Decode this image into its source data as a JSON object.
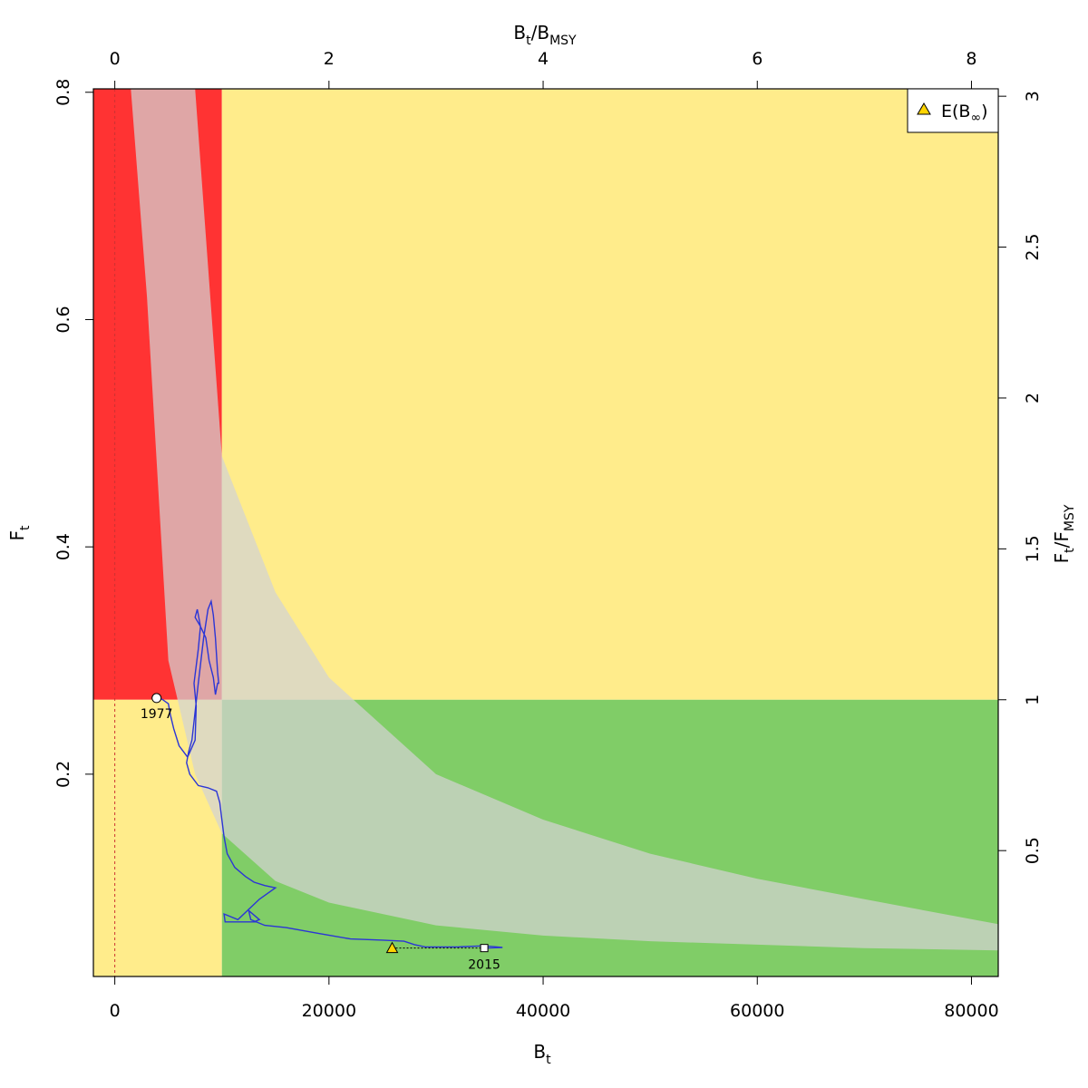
{
  "chart_data": {
    "type": "scatter",
    "title": "",
    "colors": {
      "red_zone": "#ff3333",
      "yellow_zone": "#ffec8b",
      "green_zone": "#80cd67",
      "ci_band": "#d3d3d3",
      "trajectory": "#2b35d6",
      "biomass_zero_line": "#cc3333",
      "e_binf_marker": "#ffd400",
      "last_year_marker": "#ffffff"
    },
    "axes": {
      "bottom": {
        "label_main": "B",
        "label_sub": "t",
        "range": [
          -2000,
          82500
        ],
        "ticks": [
          {
            "value": 0,
            "label": "0"
          },
          {
            "value": 20000,
            "label": "20000"
          },
          {
            "value": 40000,
            "label": "40000"
          },
          {
            "value": 60000,
            "label": "60000"
          },
          {
            "value": 80000,
            "label": "80000"
          }
        ]
      },
      "left": {
        "label_main": "F",
        "label_sub": "t",
        "range": [
          0.022,
          0.803
        ],
        "ticks": [
          {
            "value": 0.2,
            "label": "0.2"
          },
          {
            "value": 0.4,
            "label": "0.4"
          },
          {
            "value": 0.6,
            "label": "0.6"
          },
          {
            "value": 0.8,
            "label": "0.8"
          }
        ]
      },
      "top": {
        "label_main": "B",
        "label_sub": "t",
        "label_sep": "/",
        "label_main2": "B",
        "label_sub2": "MSY",
        "ticks": [
          {
            "value": 0,
            "label": "0"
          },
          {
            "value": 2,
            "label": "2"
          },
          {
            "value": 4,
            "label": "4"
          },
          {
            "value": 6,
            "label": "6"
          },
          {
            "value": 8,
            "label": "8"
          }
        ]
      },
      "right": {
        "label_main": "F",
        "label_sub": "t",
        "label_sep": "/",
        "label_main2": "F",
        "label_sub2": "MSY",
        "ticks": [
          {
            "value": 0.5,
            "label": "0.5"
          },
          {
            "value": 1,
            "label": "1"
          },
          {
            "value": 1.5,
            "label": "1.5"
          },
          {
            "value": 2,
            "label": "2"
          },
          {
            "value": 2.5,
            "label": "2.5"
          },
          {
            "value": 3,
            "label": "3"
          }
        ]
      }
    },
    "reference_points": {
      "Bmsy": 10000,
      "Fmsy": 0.2655
    },
    "ci_band": {
      "b": [
        1500,
        3000,
        5000,
        7500,
        10000,
        15000,
        20000,
        30000,
        40000,
        50000,
        60000,
        70000,
        82500
      ],
      "f_low": [
        0.803,
        0.62,
        0.3,
        0.2,
        0.148,
        0.106,
        0.087,
        0.067,
        0.058,
        0.053,
        0.05,
        0.047,
        0.045
      ],
      "f_high": [
        0.803,
        0.803,
        0.803,
        0.803,
        0.48,
        0.36,
        0.285,
        0.2,
        0.16,
        0.13,
        0.108,
        0.09,
        0.068
      ]
    },
    "trajectory": {
      "x": [
        3900,
        4400,
        5000,
        5200,
        5500,
        6000,
        6800,
        7500,
        7600,
        7400,
        7800,
        8000,
        7700,
        7500,
        8000,
        8500,
        8800,
        9200,
        9400,
        9600,
        9700,
        9600,
        9400,
        9200,
        9000,
        8700,
        8300,
        7800,
        7200,
        6900,
        6700,
        7000,
        7800,
        8700,
        9500,
        9800,
        10000,
        10200,
        10500,
        11200,
        12200,
        13000,
        14000,
        15000,
        13500,
        11500,
        10200,
        10300,
        11500,
        13000,
        13500,
        12500,
        12700,
        14000,
        16000,
        19000,
        22000,
        25000,
        27000,
        28000,
        29000,
        32000,
        34500,
        36200,
        34500
      ],
      "y": [
        0.267,
        0.266,
        0.262,
        0.252,
        0.24,
        0.225,
        0.215,
        0.23,
        0.26,
        0.28,
        0.31,
        0.33,
        0.345,
        0.338,
        0.33,
        0.32,
        0.3,
        0.285,
        0.27,
        0.28,
        0.28,
        0.29,
        0.32,
        0.34,
        0.352,
        0.345,
        0.32,
        0.28,
        0.23,
        0.22,
        0.21,
        0.2,
        0.19,
        0.188,
        0.185,
        0.175,
        0.16,
        0.145,
        0.13,
        0.118,
        0.11,
        0.105,
        0.102,
        0.1,
        0.09,
        0.072,
        0.077,
        0.07,
        0.07,
        0.07,
        0.072,
        0.08,
        0.072,
        0.067,
        0.065,
        0.06,
        0.055,
        0.054,
        0.053,
        0.05,
        0.048,
        0.048,
        0.049,
        0.0475,
        0.047
      ]
    },
    "first_year": {
      "label": "1977",
      "b": 3900,
      "f": 0.267
    },
    "last_year": {
      "label": "2015",
      "b": 34500,
      "f": 0.047
    },
    "e_binf": {
      "b": 25900,
      "f": 0.047
    },
    "legend": {
      "position": "top-right",
      "items": [
        {
          "label_main": "E(B",
          "label_sub": "∞",
          "label_end": ")",
          "marker": "triangle"
        }
      ]
    }
  }
}
